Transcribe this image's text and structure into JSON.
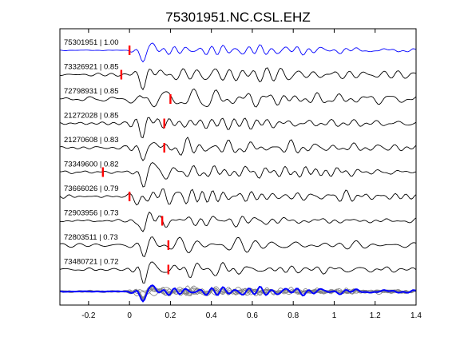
{
  "chart_data": {
    "type": "line",
    "title": "75301951.NC.CSL.EHZ",
    "xlabel": "",
    "ylabel": "",
    "xlim": [
      -0.34,
      1.4
    ],
    "x_ticks": [
      {
        "value": -0.2,
        "label": "-0.2"
      },
      {
        "value": 0,
        "label": "0"
      },
      {
        "value": 0.2,
        "label": "0.2"
      },
      {
        "value": 0.4,
        "label": "0.4"
      },
      {
        "value": 0.6,
        "label": "0.6"
      },
      {
        "value": 0.8,
        "label": "0.8"
      },
      {
        "value": 1.0,
        "label": "1"
      },
      {
        "value": 1.2,
        "label": "1.2"
      },
      {
        "value": 1.4,
        "label": "1.4"
      }
    ],
    "grid": false,
    "legend": "none",
    "colors": {
      "master": "#0000ff",
      "trace": "#000000",
      "stack": "#808080",
      "pick": "#ff0000"
    },
    "traces": [
      {
        "label": "75301951 | 1.00",
        "event_id": "75301951",
        "cc": 1.0,
        "pick_time": 0.0,
        "color": "master"
      },
      {
        "label": "73326921 | 0.85",
        "event_id": "73326921",
        "cc": 0.85,
        "pick_time": -0.04,
        "color": "trace"
      },
      {
        "label": "72798931 | 0.85",
        "event_id": "72798931",
        "cc": 0.85,
        "pick_time": 0.2,
        "color": "trace"
      },
      {
        "label": "21272028 | 0.85",
        "event_id": "21272028",
        "cc": 0.85,
        "pick_time": 0.17,
        "color": "trace"
      },
      {
        "label": "21270608 | 0.83",
        "event_id": "21270608",
        "cc": 0.83,
        "pick_time": 0.17,
        "color": "trace"
      },
      {
        "label": "73349600 | 0.82",
        "event_id": "73349600",
        "cc": 0.82,
        "pick_time": -0.13,
        "color": "trace"
      },
      {
        "label": "73666026 | 0.79",
        "event_id": "73666026",
        "cc": 0.79,
        "pick_time": 0.0,
        "color": "trace"
      },
      {
        "label": "72903956 | 0.73",
        "event_id": "72903956",
        "cc": 0.73,
        "pick_time": 0.16,
        "color": "trace"
      },
      {
        "label": "72803511 | 0.73",
        "event_id": "72803511",
        "cc": 0.73,
        "pick_time": 0.19,
        "color": "trace"
      },
      {
        "label": "73480721 | 0.72",
        "event_id": "73480721",
        "cc": 0.72,
        "pick_time": 0.19,
        "color": "trace"
      }
    ],
    "overlay_stack": {
      "traces": "all",
      "highlight": "master"
    }
  }
}
